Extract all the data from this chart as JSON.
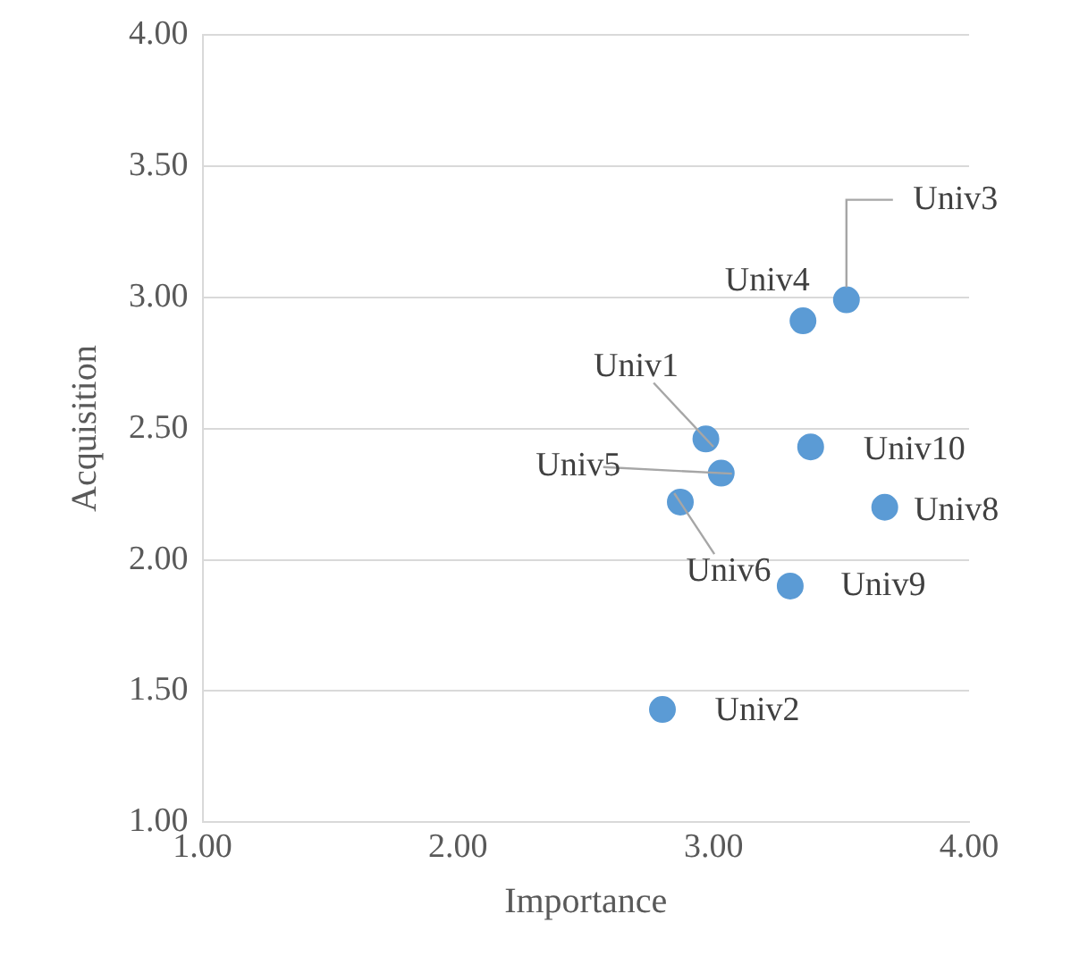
{
  "chart_data": {
    "type": "scatter",
    "xlabel": "Importance",
    "ylabel": "Acquisition",
    "x": [
      2.97,
      2.8,
      3.52,
      3.35,
      3.03,
      2.87,
      3.67,
      3.3,
      3.38
    ],
    "values": [
      2.46,
      1.43,
      2.99,
      2.91,
      2.33,
      2.22,
      2.2,
      1.9,
      2.43
    ],
    "color": "#5b9bd5",
    "marker": "circle",
    "grid": "y",
    "legend": false,
    "xlim": [
      1,
      4
    ],
    "xticks": [
      {
        "value": 1,
        "label": "1.00"
      },
      {
        "value": 2,
        "label": "2.00"
      },
      {
        "value": 3,
        "label": "3.00"
      },
      {
        "value": 4,
        "label": "4.00"
      }
    ],
    "ylim": [
      1,
      4
    ],
    "yticks": [
      {
        "value": 1,
        "label": "1.00"
      },
      {
        "value": 1.5,
        "label": "1.50"
      },
      {
        "value": 2,
        "label": "2.00"
      },
      {
        "value": 2.5,
        "label": "2.50"
      },
      {
        "value": 3,
        "label": "3.00"
      },
      {
        "value": 3.5,
        "label": "3.50"
      },
      {
        "value": 4,
        "label": "4.00"
      }
    ],
    "annotations": [
      {
        "text": "Univ1",
        "x": 2.97,
        "y": 2.46
      },
      {
        "text": "Univ2",
        "x": 2.8,
        "y": 1.43
      },
      {
        "text": "Univ3",
        "x": 3.52,
        "y": 2.99
      },
      {
        "text": "Univ4",
        "x": 3.35,
        "y": 2.91
      },
      {
        "text": "Univ5",
        "x": 3.03,
        "y": 2.33
      },
      {
        "text": "Univ6",
        "x": 2.87,
        "y": 2.22
      },
      {
        "text": "Univ8",
        "x": 3.67,
        "y": 2.2
      },
      {
        "text": "Univ9",
        "x": 3.3,
        "y": 1.9
      },
      {
        "text": "Univ10",
        "x": 3.38,
        "y": 2.43
      }
    ]
  }
}
